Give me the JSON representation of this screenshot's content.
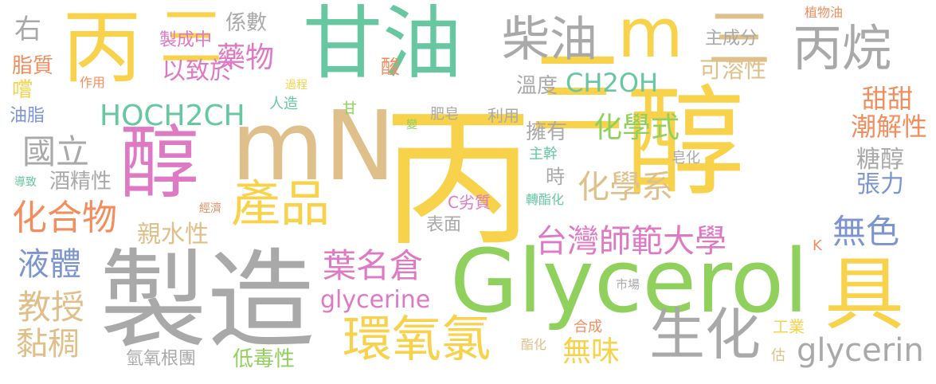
{
  "palette": {
    "yellow": "#f8d24a",
    "green": "#8fd15c",
    "teal": "#66c7a0",
    "tan": "#dfc08a",
    "gray": "#a9a9a9",
    "pink": "#de79c4",
    "orange": "#f28d5e",
    "blue": "#7d95cf"
  },
  "words": {
    "bing_large": "丙",
    "san_large": "三",
    "chun_large": "醇",
    "bing_topleft": "丙",
    "san_topleft": "三",
    "ganyou": "甘油",
    "chaiyou": "柴油",
    "m_top": "m",
    "san_topright": "三",
    "bingwan": "丙烷",
    "chun_left": "醇",
    "mN": "mN",
    "chanpin": "產品",
    "zhizao": "製造",
    "glycerol": "Glycerol",
    "ju": "具",
    "huanyanglu": "環氧氯",
    "shenghua": "生化",
    "hoch2ch": "HOCH2CH",
    "ch2oh": "CH2OH",
    "huaxueshi": "化學式",
    "huaxuexi": "化學系",
    "taiwan_shida": "台灣師範大學",
    "huahewu": "化合物",
    "guoli": "國立",
    "yaowu": "藥物",
    "yimingcang": "葉名倉",
    "jiaoshou": "教授",
    "yeti": "液體",
    "nianchou": "黏稠",
    "wuse": "無色",
    "wuwei": "無味",
    "glycerine": "glycerine",
    "glycerin": "glycerin",
    "tiantian": "甜甜",
    "chaojiexing": "潮解性",
    "tangchun": "糖醇",
    "zhangli": "張力",
    "qinshuixing": "親水性",
    "yizhiyu": "以致於",
    "keronxing": "可溶性",
    "zhuchengfen": "主成分",
    "wendu": "溫度",
    "xishu": "係數",
    "zhichengzhong": "製成中",
    "you": "右",
    "zhizhi": "脂質",
    "chang": "嚐",
    "zuoyong": "作用",
    "youzhi": "油脂",
    "rengzao": "人造",
    "guocheng": "過程",
    "suan": "酸",
    "gan": "甘",
    "jiujingxing": "酒精性",
    "feizao": "肥皂",
    "liyong": "利用",
    "yongyou": "擁有",
    "shi": "時",
    "bian": "變",
    "zhugan": "主幹",
    "zaohua": "皂化",
    "daozhi": "導致",
    "jingji": "經濟",
    "c_liezhi": "C劣質",
    "zhuanzhihua": "轉酯化",
    "biaomian": "表面",
    "qingyanggentuan": "氫氧根團",
    "diduxing": "低毒性",
    "shichang": "市場",
    "hecheng": "合成",
    "zhihua": "酯化",
    "gongye": "工業",
    "gu": "估",
    "k": "K",
    "zhiwuyou": "植物油"
  }
}
